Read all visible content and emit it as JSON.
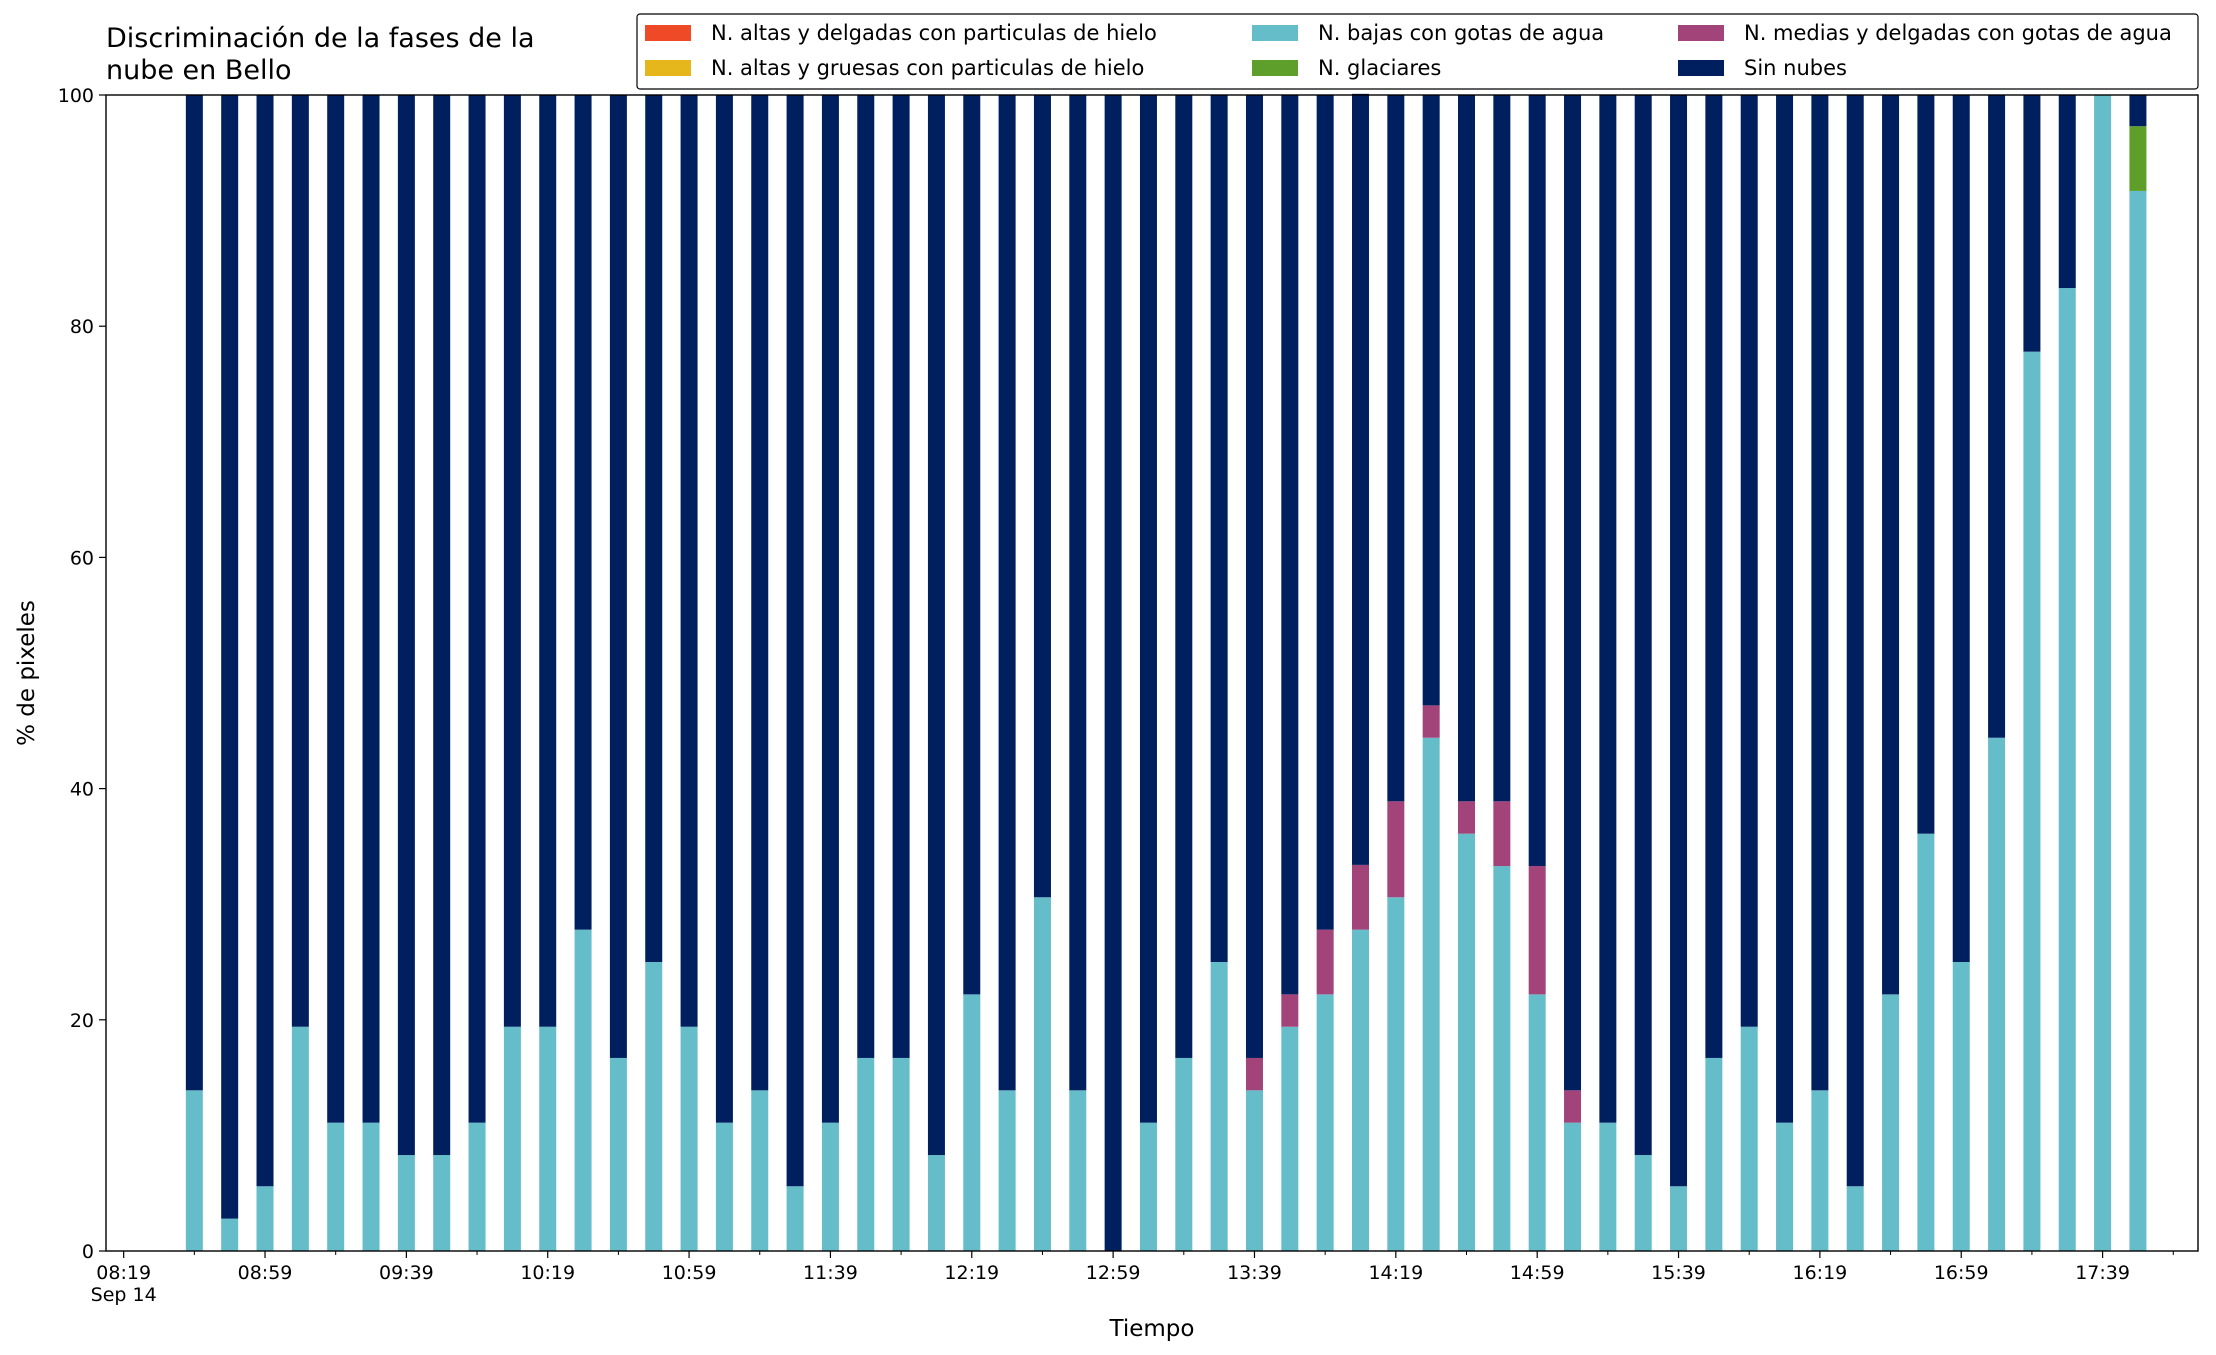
{
  "chart_data": {
    "type": "stacked_bar",
    "title": "Discriminación de la fases de la\nnube en Bello",
    "x_label": "Tiempo",
    "y_label": "% de pixeles",
    "x": [
      "08:39",
      "08:49",
      "08:59",
      "09:09",
      "09:19",
      "09:29",
      "09:39",
      "09:49",
      "09:59",
      "10:09",
      "10:19",
      "10:29",
      "10:39",
      "10:49",
      "10:59",
      "11:09",
      "11:19",
      "11:29",
      "11:39",
      "11:49",
      "11:59",
      "12:09",
      "12:19",
      "12:29",
      "12:39",
      "12:49",
      "12:59",
      "13:09",
      "13:19",
      "13:29",
      "13:39",
      "13:49",
      "13:59",
      "14:09",
      "14:19",
      "14:29",
      "14:39",
      "14:49",
      "14:59",
      "15:09",
      "15:19",
      "15:29",
      "15:39",
      "15:49",
      "15:59",
      "16:09",
      "16:19",
      "16:29",
      "16:39",
      "16:49",
      "16:59",
      "17:09",
      "17:19",
      "17:29",
      "17:39",
      "17:49"
    ],
    "xlim": [
      "08:14",
      "18:06"
    ],
    "xticks": [
      {
        "value": "08:19",
        "label": "08:19\nSep 14"
      },
      "08:59",
      "09:39",
      "10:19",
      "10:59",
      "11:39",
      "12:19",
      "12:59",
      "13:39",
      "14:19",
      "14:59",
      "15:39",
      "16:19",
      "16:59",
      "17:39"
    ],
    "xminorticks": [
      "08:39",
      "09:19",
      "09:59",
      "10:39",
      "11:19",
      "11:59",
      "12:39",
      "13:19",
      "13:59",
      "14:39",
      "15:19",
      "15:59",
      "16:39",
      "17:19",
      "17:59"
    ],
    "ylim": [
      0,
      100
    ],
    "yticks": [
      0,
      20,
      40,
      60,
      80,
      100
    ],
    "legend": "upper right",
    "legend_columns": 3,
    "series": [
      {
        "name": "N. altas y delgadas con particulas de hielo",
        "color": "#ef4a28",
        "values": [
          0,
          0,
          0,
          0,
          0,
          0,
          0,
          0,
          0,
          0,
          0,
          0,
          0,
          0,
          0,
          0,
          0,
          0,
          0,
          0,
          0,
          0,
          0,
          0,
          0,
          0,
          0,
          0,
          0,
          0,
          0,
          0,
          0,
          0,
          0,
          0,
          0,
          0,
          0,
          0,
          0,
          0,
          0,
          0,
          0,
          0,
          0,
          0,
          0,
          0,
          0,
          0,
          0,
          0,
          0,
          0
        ]
      },
      {
        "name": "N. altas y gruesas con particulas de hielo",
        "color": "#e5b71d",
        "values": [
          0,
          0,
          0,
          0,
          0,
          0,
          0,
          0,
          0,
          0,
          0,
          0,
          0,
          0,
          0,
          0,
          0,
          0,
          0,
          0,
          0,
          0,
          0,
          0,
          0,
          0,
          0,
          0,
          0,
          0,
          0,
          0,
          0,
          0,
          0,
          0,
          0,
          0,
          0,
          0,
          0,
          0,
          0,
          0,
          0,
          0,
          0,
          0,
          0,
          0,
          0,
          0,
          0,
          0,
          0,
          0
        ]
      },
      {
        "name": "N. bajas con gotas de agua",
        "color": "#65bdca",
        "values": [
          13.9,
          2.8,
          5.6,
          19.4,
          11.1,
          11.1,
          8.3,
          8.3,
          11.1,
          19.4,
          19.4,
          27.8,
          16.7,
          25,
          19.4,
          11.1,
          13.9,
          5.6,
          11.1,
          16.7,
          16.7,
          8.3,
          22.2,
          13.9,
          30.6,
          13.9,
          0,
          11.1,
          16.7,
          25,
          13.9,
          19.4,
          22.2,
          27.8,
          30.6,
          44.4,
          36.1,
          33.3,
          22.2,
          11.1,
          11.1,
          8.3,
          5.6,
          16.7,
          19.4,
          11.1,
          13.9,
          5.6,
          22.2,
          36.1,
          25,
          44.4,
          77.8,
          83.3,
          100,
          91.7
        ]
      },
      {
        "name": "N. glaciares",
        "color": "#5e9f2c",
        "values": [
          0,
          0,
          0,
          0,
          0,
          0,
          0,
          0,
          0,
          0,
          0,
          0,
          0,
          0,
          0,
          0,
          0,
          0,
          0,
          0,
          0,
          0,
          0,
          0,
          0,
          0,
          0,
          0,
          0,
          0,
          0,
          0,
          0,
          0,
          0,
          0,
          0,
          0,
          0,
          0,
          0,
          0,
          0,
          0,
          0,
          0,
          0,
          0,
          0,
          0,
          0,
          0,
          0,
          0,
          0,
          5.6
        ]
      },
      {
        "name": "N. medias y delgadas con gotas de agua",
        "color": "#a2447a",
        "values": [
          0,
          0,
          0,
          0,
          0,
          0,
          0,
          0,
          0,
          0,
          0,
          0,
          0,
          0,
          0,
          0,
          0,
          0,
          0,
          0,
          0,
          0,
          0,
          0,
          0,
          0,
          0,
          0,
          0,
          0,
          2.8,
          2.8,
          5.6,
          5.6,
          8.3,
          2.8,
          2.8,
          5.6,
          11.1,
          2.8,
          0,
          0,
          0,
          0,
          0,
          0,
          0,
          0,
          0,
          0,
          0,
          0,
          0,
          0,
          0,
          0
        ]
      },
      {
        "name": "Sin nubes",
        "color": "#001f5f",
        "values": [
          86.1,
          97.2,
          94.4,
          80.6,
          88.9,
          88.9,
          91.7,
          91.7,
          88.9,
          80.6,
          80.6,
          72.2,
          83.3,
          75,
          80.6,
          88.9,
          86.1,
          94.4,
          88.9,
          83.3,
          83.3,
          91.7,
          77.8,
          86.1,
          69.4,
          86.1,
          100,
          88.9,
          83.3,
          75,
          83.3,
          77.8,
          72.2,
          66.7,
          61.1,
          52.8,
          61.1,
          61.1,
          66.7,
          86.1,
          88.9,
          91.7,
          94.4,
          83.3,
          80.6,
          88.9,
          86.1,
          94.4,
          77.8,
          63.9,
          75,
          55.6,
          22.2,
          16.7,
          0,
          2.7
        ]
      }
    ]
  }
}
